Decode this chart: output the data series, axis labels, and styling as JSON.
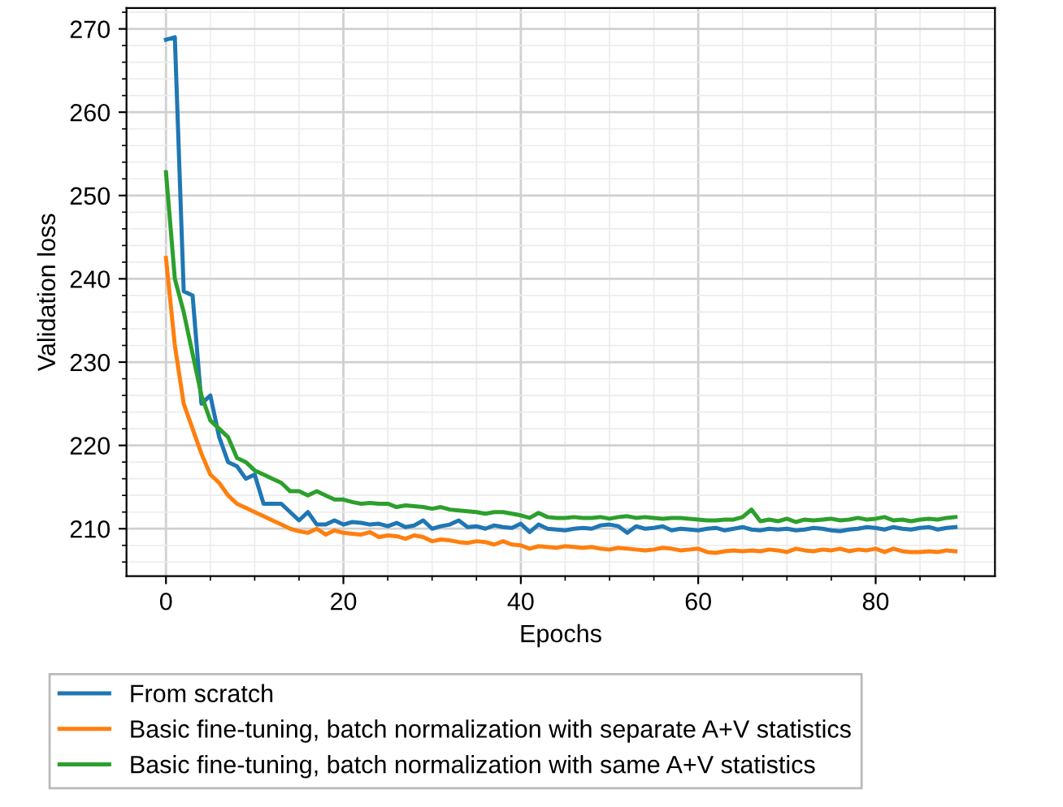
{
  "chart_data": {
    "type": "line",
    "xlabel": "Epochs",
    "ylabel": "Validation loss",
    "x": [
      0,
      1,
      2,
      3,
      4,
      5,
      6,
      7,
      8,
      9,
      10,
      11,
      12,
      13,
      14,
      15,
      16,
      17,
      18,
      19,
      20,
      21,
      22,
      23,
      24,
      25,
      26,
      27,
      28,
      29,
      30,
      31,
      32,
      33,
      34,
      35,
      36,
      37,
      38,
      39,
      40,
      41,
      42,
      43,
      44,
      45,
      46,
      47,
      48,
      49,
      50,
      51,
      52,
      53,
      54,
      55,
      56,
      57,
      58,
      59,
      60,
      61,
      62,
      63,
      64,
      65,
      66,
      67,
      68,
      69,
      70,
      71,
      72,
      73,
      74,
      75,
      76,
      77,
      78,
      79,
      80,
      81,
      82,
      83,
      84,
      85,
      86,
      87,
      88,
      89
    ],
    "series": [
      {
        "name": "From scratch",
        "color": "#1f77b4",
        "values": [
          268.7,
          269,
          238.5,
          238,
          225,
          226,
          221,
          218,
          217.5,
          216,
          216.5,
          213,
          213,
          213,
          212,
          211,
          212,
          210.5,
          210.5,
          211,
          210.5,
          210.8,
          210.7,
          210.5,
          210.6,
          210.3,
          210.7,
          210.2,
          210.4,
          211,
          210,
          210.3,
          210.5,
          211,
          210.2,
          210.3,
          210,
          210.4,
          210.2,
          210.1,
          210.6,
          209.6,
          210.5,
          210,
          209.9,
          209.8,
          210,
          210.1,
          210,
          210.4,
          210.5,
          210.3,
          209.5,
          210.3,
          210,
          210.1,
          210.3,
          209.8,
          210,
          209.9,
          209.8,
          210,
          210.1,
          209.8,
          210,
          210.2,
          209.9,
          209.8,
          210,
          209.9,
          210,
          209.8,
          209.9,
          210.1,
          210,
          209.8,
          209.7,
          209.9,
          210,
          210.2,
          210.1,
          209.9,
          210.2,
          210,
          209.9,
          210.1,
          210.2,
          209.9,
          210.1,
          210.2
        ]
      },
      {
        "name": "Basic fine-tuning, batch normalization with separate A+V statistics",
        "color": "#ff7f0e",
        "values": [
          242.5,
          232,
          225,
          222,
          219,
          216.5,
          215.5,
          214,
          213,
          212.5,
          212,
          211.5,
          211,
          210.5,
          210,
          209.7,
          209.5,
          210,
          209.3,
          209.8,
          209.5,
          209.4,
          209.3,
          209.6,
          209,
          209.2,
          209.1,
          208.8,
          209.2,
          209,
          208.5,
          208.7,
          208.6,
          208.4,
          208.3,
          208.5,
          208.4,
          208.1,
          208.5,
          208.1,
          208,
          207.6,
          207.9,
          207.8,
          207.7,
          207.9,
          207.8,
          207.7,
          207.8,
          207.6,
          207.5,
          207.7,
          207.6,
          207.5,
          207.4,
          207.5,
          207.7,
          207.6,
          207.4,
          207.5,
          207.6,
          207.2,
          207.1,
          207.3,
          207.4,
          207.3,
          207.4,
          207.3,
          207.5,
          207.4,
          207.2,
          207.6,
          207.4,
          207.3,
          207.5,
          207.4,
          207.6,
          207.3,
          207.5,
          207.4,
          207.6,
          207.2,
          207.6,
          207.3,
          207.2,
          207.2,
          207.3,
          207.2,
          207.4,
          207.3
        ]
      },
      {
        "name": "Basic fine-tuning, batch normalization with same A+V statistics",
        "color": "#2ca02c",
        "values": [
          252.8,
          240,
          236,
          231,
          226,
          223,
          222,
          221,
          218.5,
          218,
          217,
          216.5,
          216,
          215.5,
          214.5,
          214.5,
          214,
          214.5,
          214,
          213.5,
          213.5,
          213.2,
          213,
          213.1,
          213,
          213,
          212.6,
          212.8,
          212.7,
          212.6,
          212.4,
          212.6,
          212.3,
          212.2,
          212.1,
          212,
          211.8,
          212,
          212,
          211.8,
          211.6,
          211.3,
          211.9,
          211.4,
          211.3,
          211.3,
          211.4,
          211.3,
          211.3,
          211.4,
          211.2,
          211.4,
          211.5,
          211.3,
          211.4,
          211.3,
          211.2,
          211.3,
          211.3,
          211.2,
          211.1,
          211,
          211,
          211.1,
          211.1,
          211.4,
          212.3,
          210.9,
          211.1,
          210.9,
          211.2,
          210.8,
          211.1,
          211,
          211.1,
          211.2,
          211,
          211.1,
          211.3,
          211.1,
          211.2,
          211.4,
          211,
          211.1,
          210.9,
          211.1,
          211.2,
          211.1,
          211.3,
          211.4
        ]
      }
    ],
    "xlim": [
      -4.45,
      93.45
    ],
    "ylim": [
      204.3,
      272.5
    ],
    "xticks": [
      0,
      20,
      40,
      60,
      80
    ],
    "yticks": [
      210,
      220,
      230,
      240,
      250,
      260,
      270
    ],
    "grid": true,
    "legend": "bottom",
    "marker": "none",
    "line_style": "solid"
  }
}
